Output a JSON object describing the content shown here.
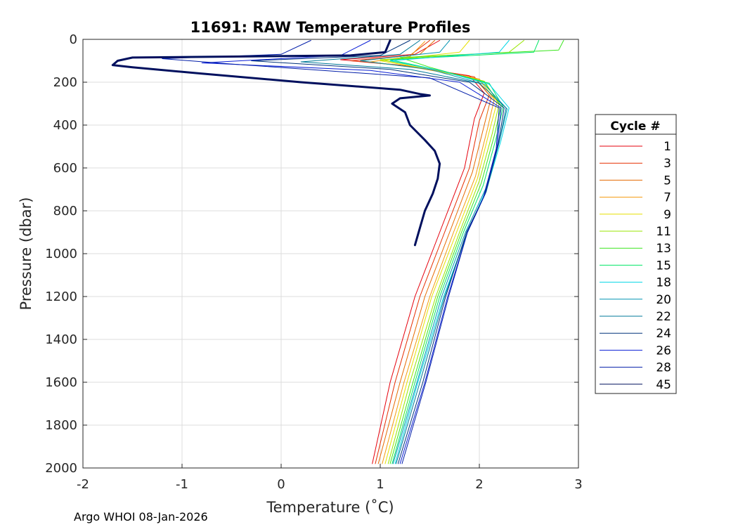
{
  "chart_data": {
    "type": "line",
    "title": "11691: RAW Temperature Profiles",
    "xlabel": "Temperature (˚C)",
    "ylabel": "Pressure (dbar)",
    "xlim": [
      -2,
      3
    ],
    "ylim": [
      0,
      2000
    ],
    "y_reversed": true,
    "grid": true,
    "x_ticks": [
      -2,
      -1,
      0,
      1,
      2,
      3
    ],
    "y_ticks": [
      0,
      200,
      400,
      600,
      800,
      1000,
      1200,
      1400,
      1600,
      1800,
      2000
    ],
    "legend": {
      "title": "Cycle #",
      "placement": "right-outside"
    },
    "series": [
      {
        "name": "1",
        "color": "#e5000c",
        "width": 1,
        "points": [
          [
            1.6,
            5
          ],
          [
            1.35,
            70
          ],
          [
            0.6,
            95
          ],
          [
            1.2,
            120
          ],
          [
            1.9,
            170
          ],
          [
            2.05,
            250
          ],
          [
            1.95,
            370
          ],
          [
            1.85,
            600
          ],
          [
            1.6,
            900
          ],
          [
            1.35,
            1200
          ],
          [
            1.1,
            1600
          ],
          [
            0.92,
            1980
          ]
        ]
      },
      {
        "name": "3",
        "color": "#e52d00",
        "width": 1,
        "points": [
          [
            1.5,
            5
          ],
          [
            1.3,
            75
          ],
          [
            0.7,
            100
          ],
          [
            1.3,
            125
          ],
          [
            1.95,
            175
          ],
          [
            2.1,
            260
          ],
          [
            2.0,
            380
          ],
          [
            1.9,
            600
          ],
          [
            1.65,
            900
          ],
          [
            1.4,
            1200
          ],
          [
            1.15,
            1600
          ],
          [
            0.95,
            1980
          ]
        ]
      },
      {
        "name": "5",
        "color": "#e56a00",
        "width": 1,
        "points": [
          [
            1.55,
            5
          ],
          [
            1.4,
            70
          ],
          [
            0.8,
            100
          ],
          [
            1.35,
            130
          ],
          [
            1.95,
            180
          ],
          [
            2.12,
            270
          ],
          [
            2.05,
            400
          ],
          [
            1.93,
            620
          ],
          [
            1.7,
            900
          ],
          [
            1.45,
            1200
          ],
          [
            1.2,
            1600
          ],
          [
            0.98,
            1980
          ]
        ]
      },
      {
        "name": "7",
        "color": "#f49a0c",
        "width": 1,
        "points": [
          [
            1.45,
            10
          ],
          [
            1.3,
            80
          ],
          [
            0.9,
            105
          ],
          [
            1.4,
            135
          ],
          [
            2.0,
            185
          ],
          [
            2.15,
            280
          ],
          [
            2.08,
            420
          ],
          [
            1.96,
            640
          ],
          [
            1.74,
            900
          ],
          [
            1.5,
            1200
          ],
          [
            1.24,
            1600
          ],
          [
            1.02,
            1980
          ]
        ]
      },
      {
        "name": "9",
        "color": "#e6e000",
        "width": 1,
        "points": [
          [
            1.9,
            5
          ],
          [
            1.8,
            60
          ],
          [
            1.0,
            100
          ],
          [
            1.45,
            135
          ],
          [
            2.0,
            190
          ],
          [
            2.18,
            290
          ],
          [
            2.1,
            430
          ],
          [
            1.98,
            650
          ],
          [
            1.77,
            900
          ],
          [
            1.52,
            1200
          ],
          [
            1.27,
            1600
          ],
          [
            1.05,
            1980
          ]
        ]
      },
      {
        "name": "11",
        "color": "#98e600",
        "width": 1,
        "points": [
          [
            2.45,
            5
          ],
          [
            2.3,
            60
          ],
          [
            1.0,
            95
          ],
          [
            1.5,
            135
          ],
          [
            2.05,
            195
          ],
          [
            2.2,
            300
          ],
          [
            2.13,
            440
          ],
          [
            2.0,
            660
          ],
          [
            1.8,
            900
          ],
          [
            1.56,
            1200
          ],
          [
            1.3,
            1600
          ],
          [
            1.08,
            1980
          ]
        ]
      },
      {
        "name": "13",
        "color": "#38e61b",
        "width": 1,
        "points": [
          [
            2.85,
            5
          ],
          [
            2.8,
            50
          ],
          [
            1.2,
            85
          ],
          [
            1.5,
            130
          ],
          [
            2.05,
            200
          ],
          [
            2.22,
            310
          ],
          [
            2.15,
            450
          ],
          [
            2.02,
            670
          ],
          [
            1.82,
            900
          ],
          [
            1.58,
            1200
          ],
          [
            1.33,
            1600
          ],
          [
            1.1,
            1980
          ]
        ]
      },
      {
        "name": "15",
        "color": "#00e666",
        "width": 1,
        "points": [
          [
            2.6,
            5
          ],
          [
            2.55,
            60
          ],
          [
            1.1,
            95
          ],
          [
            1.55,
            140
          ],
          [
            2.1,
            205
          ],
          [
            2.24,
            315
          ],
          [
            2.17,
            460
          ],
          [
            2.04,
            680
          ],
          [
            1.84,
            900
          ],
          [
            1.6,
            1200
          ],
          [
            1.35,
            1600
          ],
          [
            1.12,
            1980
          ]
        ]
      },
      {
        "name": "18",
        "color": "#00d6e6",
        "width": 1,
        "points": [
          [
            2.3,
            5
          ],
          [
            2.2,
            60
          ],
          [
            1.1,
            100
          ],
          [
            1.6,
            145
          ],
          [
            2.1,
            210
          ],
          [
            2.3,
            320
          ],
          [
            2.22,
            470
          ],
          [
            2.08,
            690
          ],
          [
            1.88,
            900
          ],
          [
            1.64,
            1200
          ],
          [
            1.38,
            1600
          ],
          [
            1.15,
            1980
          ]
        ]
      },
      {
        "name": "20",
        "color": "#0094b2",
        "width": 1,
        "points": [
          [
            1.7,
            5
          ],
          [
            1.6,
            60
          ],
          [
            0.8,
            100
          ],
          [
            1.5,
            140
          ],
          [
            2.05,
            210
          ],
          [
            2.28,
            325
          ],
          [
            2.2,
            480
          ],
          [
            2.06,
            700
          ],
          [
            1.86,
            900
          ],
          [
            1.62,
            1200
          ],
          [
            1.37,
            1600
          ],
          [
            1.13,
            1980
          ]
        ]
      },
      {
        "name": "22",
        "color": "#007a99",
        "width": 1,
        "points": [
          [
            1.4,
            5
          ],
          [
            1.2,
            70
          ],
          [
            0.2,
            105
          ],
          [
            1.3,
            140
          ],
          [
            2.0,
            205
          ],
          [
            2.27,
            320
          ],
          [
            2.2,
            480
          ],
          [
            2.07,
            710
          ],
          [
            1.88,
            900
          ],
          [
            1.65,
            1200
          ],
          [
            1.4,
            1600
          ],
          [
            1.16,
            1980
          ]
        ]
      },
      {
        "name": "24",
        "color": "#00327a",
        "width": 1,
        "points": [
          [
            1.3,
            5
          ],
          [
            1.0,
            75
          ],
          [
            -0.3,
            100
          ],
          [
            1.1,
            140
          ],
          [
            1.9,
            200
          ],
          [
            2.25,
            320
          ],
          [
            2.19,
            490
          ],
          [
            2.06,
            720
          ],
          [
            1.87,
            900
          ],
          [
            1.66,
            1200
          ],
          [
            1.43,
            1600
          ],
          [
            1.18,
            1980
          ]
        ]
      },
      {
        "name": "26",
        "color": "#0a1ed6",
        "width": 1,
        "points": [
          [
            0.9,
            5
          ],
          [
            0.6,
            75
          ],
          [
            -0.8,
            110
          ],
          [
            0.9,
            145
          ],
          [
            1.8,
            200
          ],
          [
            2.22,
            320
          ],
          [
            2.18,
            500
          ],
          [
            2.05,
            730
          ],
          [
            1.88,
            900
          ],
          [
            1.68,
            1200
          ],
          [
            1.45,
            1600
          ],
          [
            1.2,
            1980
          ]
        ]
      },
      {
        "name": "28",
        "color": "#001ca8",
        "width": 1,
        "points": [
          [
            0.3,
            5
          ],
          [
            0.0,
            70
          ],
          [
            -1.2,
            90
          ],
          [
            -0.5,
            115
          ],
          [
            1.5,
            180
          ],
          [
            2.2,
            320
          ],
          [
            2.17,
            510
          ],
          [
            2.04,
            740
          ],
          [
            1.88,
            900
          ],
          [
            1.69,
            1200
          ],
          [
            1.46,
            1600
          ],
          [
            1.22,
            1980
          ]
        ]
      },
      {
        "name": "45",
        "color": "#00105e",
        "width": 3,
        "points": [
          [
            1.1,
            5
          ],
          [
            1.05,
            60
          ],
          [
            0.7,
            75
          ],
          [
            -1.5,
            85
          ],
          [
            -1.65,
            100
          ],
          [
            -1.7,
            120
          ],
          [
            -1.5,
            130
          ],
          [
            -0.8,
            160
          ],
          [
            0.2,
            200
          ],
          [
            1.2,
            235
          ],
          [
            1.4,
            255
          ],
          [
            1.5,
            262
          ],
          [
            1.2,
            275
          ],
          [
            1.12,
            300
          ],
          [
            1.25,
            340
          ],
          [
            1.3,
            400
          ],
          [
            1.45,
            470
          ],
          [
            1.55,
            520
          ],
          [
            1.6,
            580
          ],
          [
            1.58,
            650
          ],
          [
            1.53,
            720
          ],
          [
            1.45,
            800
          ],
          [
            1.4,
            880
          ],
          [
            1.35,
            960
          ]
        ]
      }
    ]
  },
  "footer": {
    "text": "Argo WHOI 08-Jan-2026"
  }
}
